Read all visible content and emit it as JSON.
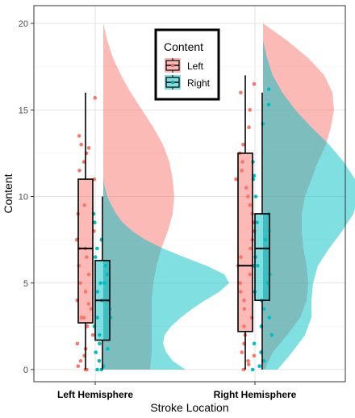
{
  "chart_data": {
    "type": "raincloud",
    "xlabel": "Stroke Location",
    "ylabel": "Content",
    "categories": [
      "Left Hemisphere",
      "Right Hemisphere"
    ],
    "ylim": [
      0,
      20
    ],
    "yticks": [
      0,
      5,
      10,
      15,
      20
    ],
    "grid": true,
    "legend": {
      "title": "Content",
      "position": "top-center",
      "entries": [
        "Left",
        "Right"
      ]
    },
    "colors": {
      "Left": "#F8766D",
      "Right": "#00BFC4"
    },
    "boxplots": [
      {
        "category": "Left Hemisphere",
        "series": "Left",
        "min": 0,
        "q1": 2.7,
        "median": 7.0,
        "q3": 11.0,
        "max": 16.0
      },
      {
        "category": "Left Hemisphere",
        "series": "Right",
        "min": 0,
        "q1": 1.7,
        "median": 4.0,
        "q3": 6.3,
        "max": 10.0
      },
      {
        "category": "Right Hemisphere",
        "series": "Left",
        "min": 0,
        "q1": 2.2,
        "median": 6.0,
        "q3": 12.5,
        "max": 17.0
      },
      {
        "category": "Right Hemisphere",
        "series": "Right",
        "min": 0,
        "q1": 4.0,
        "median": 7.0,
        "q3": 9.0,
        "max": 16.0
      }
    ],
    "densities": [
      {
        "category": "Left Hemisphere",
        "series": "Left",
        "y": [
          0,
          1,
          2,
          3,
          4,
          5,
          6,
          7,
          8,
          9,
          10,
          11,
          12,
          13,
          14,
          15,
          16,
          17,
          18,
          19,
          20
        ],
        "density": [
          0.58,
          0.6,
          0.6,
          0.6,
          0.6,
          0.62,
          0.66,
          0.72,
          0.8,
          0.86,
          0.88,
          0.86,
          0.82,
          0.74,
          0.62,
          0.48,
          0.34,
          0.22,
          0.12,
          0.05,
          0.0
        ]
      },
      {
        "category": "Left Hemisphere",
        "series": "Right",
        "y": [
          0,
          0.5,
          1,
          1.5,
          2,
          2.5,
          3,
          3.5,
          4,
          4.5,
          5,
          5.5,
          6,
          6.5,
          7,
          7.5,
          8,
          8.5,
          9,
          9.5,
          10,
          10.5,
          11
        ],
        "density": [
          1.02,
          0.86,
          0.78,
          0.74,
          0.76,
          0.84,
          0.96,
          1.1,
          1.26,
          1.44,
          1.56,
          1.5,
          1.28,
          1.0,
          0.74,
          0.52,
          0.36,
          0.24,
          0.16,
          0.1,
          0.05,
          0.02,
          0.0
        ]
      },
      {
        "category": "Right Hemisphere",
        "series": "Left",
        "y": [
          0,
          1,
          2,
          3,
          4,
          5,
          6,
          7,
          8,
          9,
          10,
          11,
          12,
          13,
          14,
          15,
          16,
          17,
          18,
          19,
          20
        ],
        "density": [
          0.02,
          0.12,
          0.3,
          0.46,
          0.54,
          0.56,
          0.54,
          0.5,
          0.48,
          0.48,
          0.52,
          0.6,
          0.68,
          0.78,
          0.84,
          0.88,
          0.86,
          0.76,
          0.56,
          0.3,
          0.0
        ]
      },
      {
        "category": "Right Hemisphere",
        "series": "Right",
        "y": [
          0,
          1,
          2,
          3,
          4,
          5,
          6,
          7,
          8,
          9,
          10,
          11,
          12,
          13,
          14,
          15,
          16,
          17,
          18,
          19
        ],
        "density": [
          0.18,
          0.36,
          0.52,
          0.6,
          0.6,
          0.62,
          0.68,
          0.82,
          0.98,
          1.12,
          1.18,
          1.14,
          1.0,
          0.82,
          0.6,
          0.4,
          0.24,
          0.12,
          0.05,
          0.0
        ]
      }
    ],
    "points": [
      {
        "category": "Left Hemisphere",
        "series": "Left",
        "values": [
          0,
          0,
          0.2,
          0.5,
          0.8,
          1.2,
          1.5,
          2,
          2.5,
          3,
          3,
          3.5,
          3.8,
          4,
          4.5,
          5,
          5.5,
          6,
          6.5,
          7,
          7,
          7.5,
          8,
          8.5,
          9,
          9.5,
          11,
          11.5,
          12,
          12.5,
          12.8,
          13,
          13.5,
          15.7
        ]
      },
      {
        "category": "Left Hemisphere",
        "series": "Right",
        "values": [
          0,
          0,
          0.2,
          0.5,
          1,
          1.2,
          1.5,
          2,
          2.5,
          3,
          3,
          3.5,
          4,
          4.5,
          5,
          5,
          5.5,
          6,
          6.5,
          7,
          7.5,
          8.5,
          9
        ]
      },
      {
        "category": "Right Hemisphere",
        "series": "Left",
        "values": [
          0,
          0.3,
          0.5,
          0.8,
          1,
          1.5,
          2,
          2.5,
          3,
          3.5,
          4,
          4.5,
          5,
          5.5,
          6,
          6.5,
          7,
          7.5,
          8,
          8.5,
          9,
          9.5,
          10,
          10.5,
          11,
          11.5,
          12,
          12.5,
          13,
          14,
          15,
          16,
          16.5
        ]
      },
      {
        "category": "Right Hemisphere",
        "series": "Right",
        "values": [
          0,
          0.2,
          0.5,
          1,
          1.5,
          2,
          2.5,
          3,
          3.5,
          4,
          4.5,
          5,
          5.5,
          6,
          6,
          6.5,
          7,
          7,
          7.5,
          8,
          8.5,
          9,
          10,
          11,
          11.2,
          12,
          14.2,
          15.3,
          16.2
        ]
      }
    ]
  }
}
